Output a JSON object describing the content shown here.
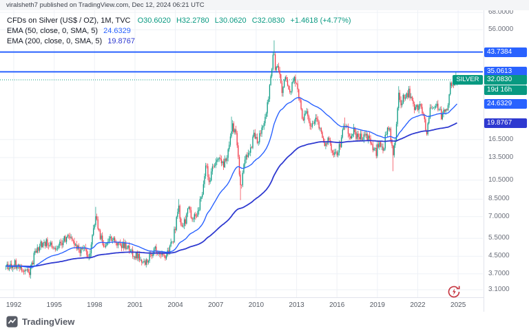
{
  "header": {
    "publish_line": "viralsheth7 published on TradingView.com, Dec 12, 2024 06:21 UTC"
  },
  "legend": {
    "symbol_title": "CFDs on Silver (US$ / OZ), 1M, TVC",
    "ohlc": {
      "o": "O30.6020",
      "h": "H32.2780",
      "l": "L30.0620",
      "c": "C32.0830",
      "change": "+1.4618 (+4.77%)"
    },
    "ema50": {
      "label": "EMA (50, close, 0, SMA, 5)",
      "value": "24.6329"
    },
    "ema200": {
      "label": "EMA (200, close, 0, SMA, 5)",
      "value": "19.8767"
    }
  },
  "axis_badges": {
    "level1": {
      "text": "43.7384",
      "price": 43.7384
    },
    "level2": {
      "text": "35.0613",
      "price": 35.0613
    },
    "last": {
      "tag": "SILVER",
      "text": "32.0830",
      "price": 32.083,
      "countdown": "19d 16h"
    },
    "ema50": {
      "text": "24.6329",
      "price": 24.6329
    },
    "ema200": {
      "text": "19.8767",
      "price": 19.8767
    }
  },
  "footer": {
    "brand": "TradingView"
  },
  "colors": {
    "up": "#089981",
    "down": "#f23645",
    "blue": "#2962ff",
    "indigo": "#2e39d0",
    "teal": "#089981",
    "grid": "#eef1f6",
    "axis_text": "#6b6f7a",
    "refresh_red": "#c63540"
  },
  "chart_data": {
    "type": "candlestick",
    "title": "CFDs on Silver (US$ / OZ)",
    "timeframe": "1M",
    "exchange": "TVC",
    "scale": "log",
    "last_price": 32.083,
    "last_ohlc": [
      30.602,
      32.278,
      30.062,
      32.083
    ],
    "change_abs": 1.4618,
    "change_pct": 4.77,
    "levels": [
      43.7384,
      35.0613
    ],
    "ema": [
      {
        "period": 50,
        "last": 24.6329
      },
      {
        "period": 200,
        "last": 19.8767
      }
    ],
    "y_ticks": [
      {
        "t": "68.0000",
        "p": 68.0
      },
      {
        "t": "56.0000",
        "p": 56.0
      },
      {
        "t": "16.5000",
        "p": 16.5
      },
      {
        "t": "13.5000",
        "p": 13.5
      },
      {
        "t": "10.5000",
        "p": 10.5
      },
      {
        "t": "8.5000",
        "p": 8.5
      },
      {
        "t": "7.0000",
        "p": 7.0
      },
      {
        "t": "5.5000",
        "p": 5.5
      },
      {
        "t": "4.5000",
        "p": 4.5
      },
      {
        "t": "3.7000",
        "p": 3.7
      },
      {
        "t": "3.1000",
        "p": 3.1
      }
    ],
    "x_ticks": [
      {
        "t": "1992",
        "v": 1992
      },
      {
        "t": "1995",
        "v": 1995
      },
      {
        "t": "1998",
        "v": 1998
      },
      {
        "t": "2001",
        "v": 2001
      },
      {
        "t": "2004",
        "v": 2004
      },
      {
        "t": "2007",
        "v": 2007
      },
      {
        "t": "2010",
        "v": 2010
      },
      {
        "t": "2013",
        "v": 2013
      },
      {
        "t": "2016",
        "v": 2016
      },
      {
        "t": "2019",
        "v": 2019
      },
      {
        "t": "2022",
        "v": 2022
      },
      {
        "t": "2025",
        "v": 2025
      }
    ],
    "monthly_close_anchors": [
      [
        1991.4,
        4.0
      ],
      [
        1992.0,
        4.15
      ],
      [
        1992.5,
        4.0
      ],
      [
        1993.17,
        3.65
      ],
      [
        1993.6,
        4.8
      ],
      [
        1994.0,
        5.1
      ],
      [
        1994.5,
        5.3
      ],
      [
        1995.0,
        4.75
      ],
      [
        1995.7,
        5.45
      ],
      [
        1996.2,
        5.6
      ],
      [
        1996.8,
        4.9
      ],
      [
        1997.3,
        4.75
      ],
      [
        1997.6,
        4.35
      ],
      [
        1997.9,
        5.9
      ],
      [
        1998.1,
        6.9
      ],
      [
        1998.4,
        5.6
      ],
      [
        1998.8,
        5.0
      ],
      [
        1999.2,
        5.4
      ],
      [
        1999.6,
        5.25
      ],
      [
        2000.0,
        5.1
      ],
      [
        2000.5,
        4.95
      ],
      [
        2001.0,
        4.55
      ],
      [
        2001.85,
        4.15
      ],
      [
        2002.4,
        4.9
      ],
      [
        2002.9,
        4.5
      ],
      [
        2003.3,
        4.55
      ],
      [
        2003.8,
        5.25
      ],
      [
        2004.25,
        7.9
      ],
      [
        2004.4,
        6.1
      ],
      [
        2004.75,
        6.7
      ],
      [
        2004.95,
        7.8
      ],
      [
        2005.2,
        7.0
      ],
      [
        2005.6,
        7.2
      ],
      [
        2005.95,
        8.8
      ],
      [
        2006.3,
        12.9
      ],
      [
        2006.5,
        10.2
      ],
      [
        2006.85,
        12.5
      ],
      [
        2007.15,
        13.4
      ],
      [
        2007.6,
        12.3
      ],
      [
        2007.95,
        14.8
      ],
      [
        2008.2,
        19.3
      ],
      [
        2008.55,
        17.2
      ],
      [
        2008.75,
        10.8
      ],
      [
        2008.85,
        9.3
      ],
      [
        2009.1,
        13.0
      ],
      [
        2009.5,
        14.2
      ],
      [
        2009.85,
        17.5
      ],
      [
        2010.1,
        16.0
      ],
      [
        2010.45,
        18.5
      ],
      [
        2010.75,
        22.0
      ],
      [
        2010.95,
        28.0
      ],
      [
        2011.1,
        33.0
      ],
      [
        2011.3,
        47.5
      ],
      [
        2011.42,
        34.5
      ],
      [
        2011.6,
        39.5
      ],
      [
        2011.8,
        31.5
      ],
      [
        2011.95,
        28.0
      ],
      [
        2012.15,
        33.0
      ],
      [
        2012.5,
        27.5
      ],
      [
        2012.8,
        34.0
      ],
      [
        2013.0,
        31.0
      ],
      [
        2013.3,
        24.0
      ],
      [
        2013.5,
        19.7
      ],
      [
        2013.65,
        23.2
      ],
      [
        2013.95,
        19.5
      ],
      [
        2014.3,
        19.8
      ],
      [
        2014.55,
        21.0
      ],
      [
        2014.95,
        15.8
      ],
      [
        2015.35,
        16.2
      ],
      [
        2015.6,
        14.6
      ],
      [
        2015.95,
        13.9
      ],
      [
        2016.3,
        16.2
      ],
      [
        2016.6,
        20.2
      ],
      [
        2016.75,
        19.0
      ],
      [
        2016.95,
        16.0
      ],
      [
        2017.25,
        18.2
      ],
      [
        2017.55,
        16.6
      ],
      [
        2017.8,
        17.1
      ],
      [
        2018.0,
        17.2
      ],
      [
        2018.45,
        16.4
      ],
      [
        2018.9,
        14.2
      ],
      [
        2019.1,
        15.9
      ],
      [
        2019.45,
        14.9
      ],
      [
        2019.7,
        18.4
      ],
      [
        2019.95,
        17.9
      ],
      [
        2020.15,
        14.2
      ],
      [
        2020.3,
        15.5
      ],
      [
        2020.6,
        28.3
      ],
      [
        2020.75,
        23.8
      ],
      [
        2020.95,
        26.4
      ],
      [
        2021.1,
        27.0
      ],
      [
        2021.35,
        28.0
      ],
      [
        2021.7,
        23.9
      ],
      [
        2021.95,
        23.3
      ],
      [
        2022.15,
        25.1
      ],
      [
        2022.4,
        21.4
      ],
      [
        2022.65,
        17.9
      ],
      [
        2022.95,
        23.9
      ],
      [
        2023.1,
        22.4
      ],
      [
        2023.35,
        25.2
      ],
      [
        2023.5,
        22.8
      ],
      [
        2023.7,
        22.2
      ],
      [
        2023.75,
        20.9
      ],
      [
        2023.95,
        24.0
      ],
      [
        2024.1,
        22.3
      ],
      [
        2024.3,
        26.0
      ],
      [
        2024.42,
        30.4
      ],
      [
        2024.6,
        29.0
      ],
      [
        2024.8,
        31.6
      ],
      [
        2024.9167,
        32.083
      ]
    ],
    "spikes": [
      [
        1998.1,
        7.8,
        "high"
      ],
      [
        2004.25,
        8.5,
        "high"
      ],
      [
        2008.2,
        21.3,
        "high"
      ],
      [
        2008.85,
        8.4,
        "low"
      ],
      [
        2011.3,
        49.8,
        "high"
      ],
      [
        2016.6,
        21.1,
        "high"
      ],
      [
        2020.15,
        11.6,
        "low"
      ],
      [
        2020.6,
        29.9,
        "high"
      ],
      [
        2024.8,
        34.9,
        "high"
      ]
    ]
  }
}
